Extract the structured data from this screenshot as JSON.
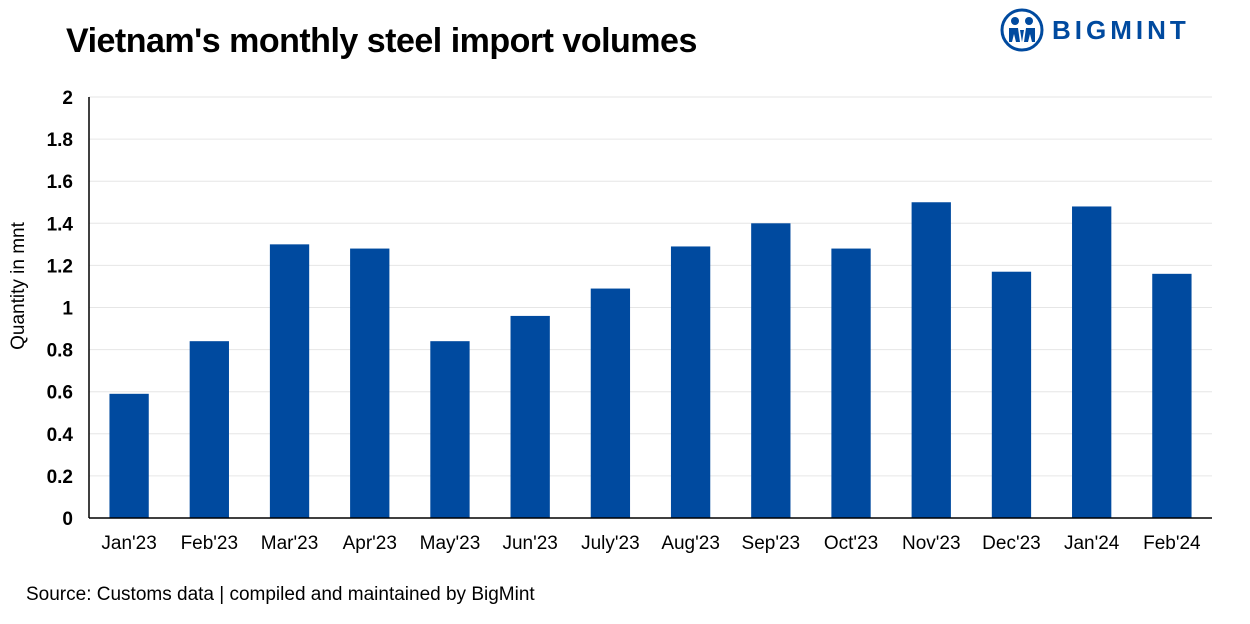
{
  "title": "Vietnam's monthly steel import volumes",
  "logo": {
    "text": "BIGMINT",
    "icon": "people-logo-icon"
  },
  "source": "Source: Customs data | compiled and maintained by BigMint",
  "colors": {
    "bar": "#004a9f",
    "grid": "#e6e6e6",
    "axis": "#000000",
    "logo": "#004a9f"
  },
  "chart_data": {
    "type": "bar",
    "title": "Vietnam's monthly steel import volumes",
    "xlabel": "",
    "ylabel": "Quantity in mnt",
    "categories": [
      "Jan'23",
      "Feb'23",
      "Mar'23",
      "Apr'23",
      "May'23",
      "Jun'23",
      "July'23",
      "Aug'23",
      "Sep'23",
      "Oct'23",
      "Nov'23",
      "Dec'23",
      "Jan'24",
      "Feb'24"
    ],
    "values": [
      0.59,
      0.84,
      1.3,
      1.28,
      0.84,
      0.96,
      1.09,
      1.29,
      1.4,
      1.28,
      1.5,
      1.17,
      1.48,
      1.16
    ],
    "ylim": [
      0,
      2
    ],
    "yticks": [
      "0",
      "0.2",
      "0.4",
      "0.6",
      "0.8",
      "1",
      "1.2",
      "1.4",
      "1.6",
      "1.8",
      "2"
    ],
    "grid": true,
    "legend": "none"
  }
}
